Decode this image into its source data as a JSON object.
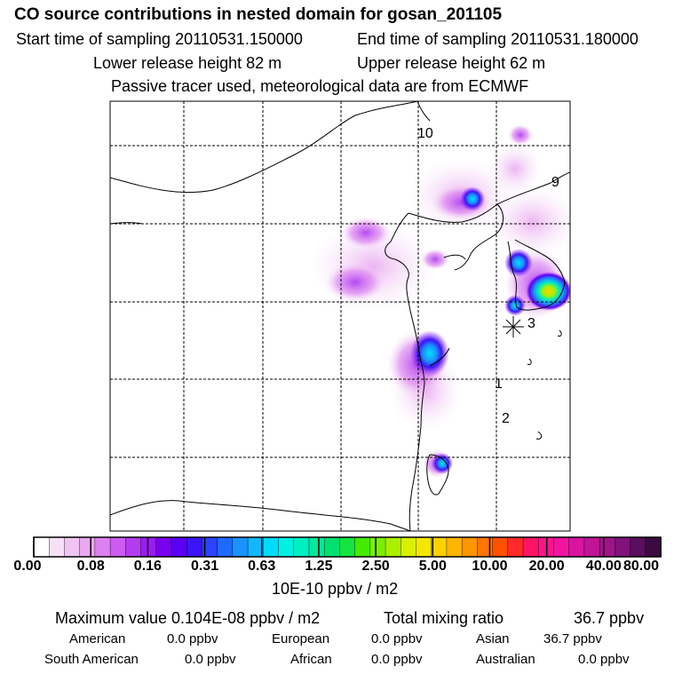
{
  "header": {
    "title": "CO  source contributions in nested domain for gosan_201105",
    "start_sampling": "Start time of sampling 20110531.150000",
    "end_sampling": "End time of sampling 20110531.180000",
    "lower_release": "Lower release height   82 m",
    "upper_release": "Upper release height   62 m",
    "tracer_note": "Passive tracer used, meteorological data are from ECMWF"
  },
  "map": {
    "trajectory_labels": [
      "10",
      "9",
      "3",
      "1",
      "2"
    ],
    "receptor_marker": "gosan-station-star"
  },
  "colorbar": {
    "ticks": [
      "0.00",
      "0.08",
      "0.16",
      "0.31",
      "0.63",
      "1.25",
      "2.50",
      "5.00",
      "10.00",
      "20.00",
      "40.00",
      "80.00"
    ],
    "colors": [
      "#ffffff",
      "#f6e0f6",
      "#f0c4f2",
      "#eaa8f0",
      "#dd80f0",
      "#cc5cf0",
      "#b43cf0",
      "#9a1cf0",
      "#7a00f0",
      "#5a00f4",
      "#3c14f8",
      "#2a44ff",
      "#1e6aff",
      "#1a92ff",
      "#12b8ff",
      "#00dcff",
      "#00f0e4",
      "#00eec0",
      "#00e89a",
      "#00e070",
      "#14e440",
      "#44ea00",
      "#7cee00",
      "#aaf000",
      "#d8f000",
      "#f4e600",
      "#ffd000",
      "#ffb400",
      "#ff9600",
      "#ff7600",
      "#ff5000",
      "#ff2a2a",
      "#ff1464",
      "#ff148c",
      "#f014a0",
      "#d814a0",
      "#c01496",
      "#a0148a",
      "#80127a",
      "#5a0e5e",
      "#3a0a40"
    ],
    "unit": "10E-10 ppbv / m2"
  },
  "summary": {
    "max_value": "Maximum value  0.104E-08 ppbv / m2",
    "total_label": "Total mixing ratio",
    "total_value": "36.7 ppbv"
  },
  "regions": [
    {
      "name": "American",
      "value": "0.0 ppbv"
    },
    {
      "name": "European",
      "value": "0.0 ppbv"
    },
    {
      "name": "Asian",
      "value": "36.7 ppbv"
    },
    {
      "name": "South American",
      "value": "0.0 ppbv"
    },
    {
      "name": "African",
      "value": "0.0 ppbv"
    },
    {
      "name": "Australian",
      "value": "0.0 ppbv"
    }
  ]
}
